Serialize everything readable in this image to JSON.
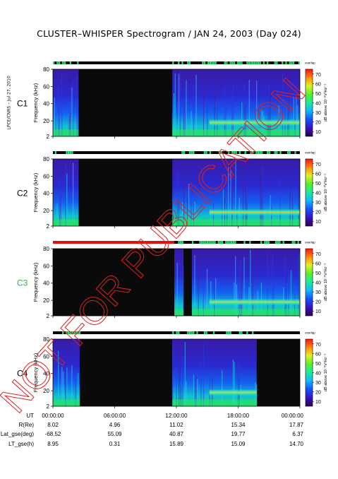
{
  "title": "CLUSTER–WHISPER Spectrogram / JAN 24, 2003 (Day 024)",
  "side_stamp": "LPCE/CNRS – Jul 27, 2010",
  "watermark": "NOT FOR PUBLICATION",
  "colors": {
    "background_dark": "#0a0a0a",
    "status_bad": "#e01010",
    "status_good": "#22dd66",
    "status_black": "#000000",
    "label_c3": "#22bb44"
  },
  "chart_data": {
    "type": "heatmap",
    "panels": [
      {
        "name": "C1",
        "label_color": "#000000",
        "ylabel": "Frequency (kHz)",
        "yticks": [
          "80",
          "60",
          "40",
          "20",
          "2"
        ],
        "ylim": [
          2,
          80
        ]
      },
      {
        "name": "C2",
        "label_color": "#000000",
        "ylabel": "Frequency (kHz)",
        "yticks": [
          "80",
          "60",
          "40",
          "20",
          "2"
        ],
        "ylim": [
          2,
          80
        ]
      },
      {
        "name": "C3",
        "label_color": "#22bb44",
        "ylabel": "Frequency (kHz)",
        "yticks": [
          "80",
          "60",
          "40",
          "20",
          "2"
        ],
        "ylim": [
          2,
          80
        ]
      },
      {
        "name": "C4",
        "label_color": "#000000",
        "ylabel": "Frequency (kHz)",
        "yticks": [
          "80",
          "60",
          "40",
          "20",
          "2"
        ],
        "ylim": [
          2,
          80
        ]
      }
    ],
    "colorbar": {
      "label": "dB above 10⁻⁸V²Hz⁻¹",
      "ticks": [
        "70",
        "60",
        "50",
        "40",
        "30",
        "20",
        "10"
      ],
      "range": [
        5,
        75
      ],
      "top_label": "overlap"
    },
    "x_axis": {
      "ticks": [
        "00:00:00",
        "06:00:00",
        "12:00:00",
        "18:00:00",
        "00:00:00"
      ],
      "range_hours": [
        0,
        24
      ]
    },
    "ephemeris": {
      "rows": [
        {
          "label": "UT",
          "values": [
            "00:00:00",
            "06:00:00",
            "12:00:00",
            "18:00:00",
            "00:00:00"
          ]
        },
        {
          "label": "R(Re)",
          "values": [
            "8.02",
            "4.96",
            "11.02",
            "15.34",
            "17.87"
          ]
        },
        {
          "label": "Lat_gse(deg)",
          "values": [
            "-68.52",
            "55.09",
            "40.87",
            "19.77",
            "6.37"
          ]
        },
        {
          "label": "LT_gse(h)",
          "values": [
            "8.95",
            "0.31",
            "15.89",
            "15.09",
            "14.70"
          ]
        }
      ]
    },
    "data_coverage_hours": {
      "C1": [
        [
          0.0,
          2.5
        ],
        [
          11.6,
          24.0
        ]
      ],
      "C2": [
        [
          0.0,
          2.5
        ],
        [
          11.6,
          24.0
        ]
      ],
      "C3": [
        [
          11.8,
          12.7
        ],
        [
          13.5,
          24.0
        ]
      ],
      "C4": [
        [
          0.0,
          2.6
        ],
        [
          11.6,
          19.8
        ]
      ]
    },
    "narrowband_emission_khz": 18
  }
}
